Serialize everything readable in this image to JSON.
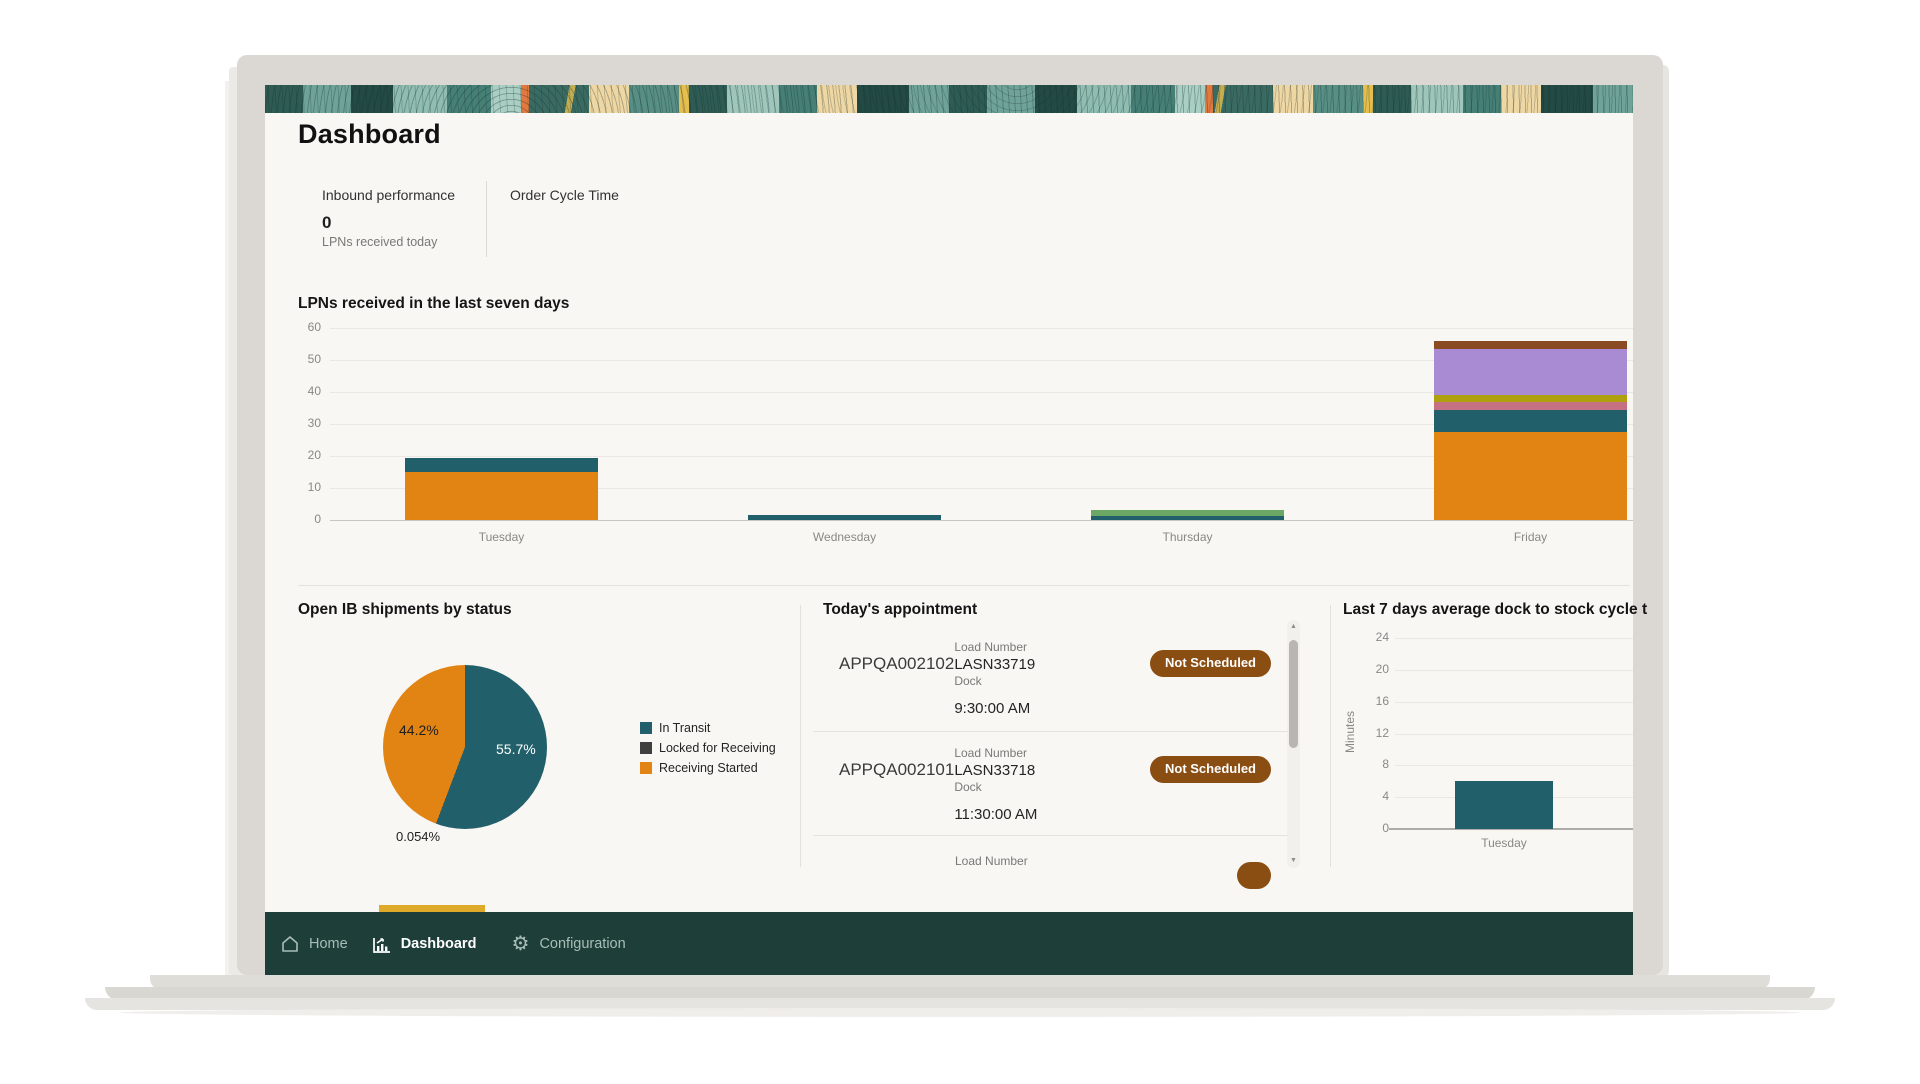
{
  "header": {
    "page_title": "Dashboard"
  },
  "kpi_tabs": [
    {
      "label": "Inbound performance",
      "value": "0",
      "sublabel": "LPNs received today",
      "selected": true
    },
    {
      "label": "Order Cycle Time",
      "selected": false
    }
  ],
  "chart_data": [
    {
      "type": "bar",
      "stacked": true,
      "title": "LPNs received in the last seven days",
      "categories": [
        "Tuesday",
        "Wednesday",
        "Thursday",
        "Friday"
      ],
      "series": [
        {
          "name": "Receiving Started",
          "color": "#E28413",
          "values": [
            15,
            0,
            0,
            27.5
          ]
        },
        {
          "name": "In Transit",
          "color": "#215F6A",
          "values": [
            4.5,
            1.5,
            1.2,
            7
          ]
        },
        {
          "name": "Unlabeled (green)",
          "color": "#6CA865",
          "values": [
            0,
            0,
            1.8,
            0
          ]
        },
        {
          "name": "Unlabeled (rose)",
          "color": "#C57183",
          "values": [
            0,
            0,
            0,
            2.5
          ]
        },
        {
          "name": "Unlabeled (olive)",
          "color": "#AFA00F",
          "values": [
            0,
            0,
            0,
            2
          ]
        },
        {
          "name": "Unlabeled (purple)",
          "color": "#A98BD4",
          "values": [
            0,
            0,
            0,
            14.5
          ]
        },
        {
          "name": "Unlabeled (brown)",
          "color": "#8A4A22",
          "values": [
            0,
            0,
            0,
            2.5
          ]
        }
      ],
      "ylim": [
        0,
        60
      ],
      "yticks": [
        60,
        50,
        40,
        30,
        20,
        10,
        0
      ],
      "grid": true,
      "legend_position": "none"
    },
    {
      "type": "pie",
      "title": "Open IB shipments by status",
      "slices": [
        {
          "label": "In Transit",
          "value_pct": 55.7,
          "color": "#215F6A",
          "data_label": "55.7%"
        },
        {
          "label": "Locked for Receiving",
          "value_pct": 0.054,
          "color": "#3F3F3F",
          "data_label": "0.054%"
        },
        {
          "label": "Receiving Started",
          "value_pct": 44.2,
          "color": "#E28413",
          "data_label": "44.2%"
        }
      ],
      "legend_position": "right"
    },
    {
      "type": "bar",
      "title": "Last 7 days average dock to stock cycle t",
      "ylabel": "Minutes",
      "categories": [
        "Tuesday"
      ],
      "values": [
        6
      ],
      "bar_color": "#215F6A",
      "ylim": [
        0,
        24
      ],
      "yticks": [
        24,
        20,
        16,
        12,
        8,
        4,
        0
      ],
      "grid": true,
      "legend_position": "none"
    }
  ],
  "appointments": {
    "title": "Today's appointment",
    "rows": [
      {
        "appointment_id": "APPQA002102",
        "load_number_label": "Load Number",
        "load_number": "LASN33719",
        "dock_label": "Dock",
        "time": "9:30:00 AM",
        "status": "Not Scheduled"
      },
      {
        "appointment_id": "APPQA002101",
        "load_number_label": "Load Number",
        "load_number": "LASN33718",
        "dock_label": "Dock",
        "time": "11:30:00 AM",
        "status": "Not Scheduled"
      },
      {
        "partial": true,
        "load_number_label": "Load Number"
      }
    ]
  },
  "nav": {
    "items": [
      {
        "label": "Home",
        "icon": "home-icon",
        "active": false
      },
      {
        "label": "Dashboard",
        "icon": "dashboard-chart-icon",
        "active": true
      },
      {
        "label": "Configuration",
        "icon": "gear-icon",
        "active": false
      }
    ],
    "active_indicator_color": "#DFA92A"
  },
  "colors": {
    "teal": "#215F6A",
    "orange": "#E28413",
    "badge_brown": "#8A4D12",
    "navbar_bg": "#1E3E39",
    "gold_indicator": "#DFA92A",
    "screen_bg": "#F8F7F4"
  }
}
